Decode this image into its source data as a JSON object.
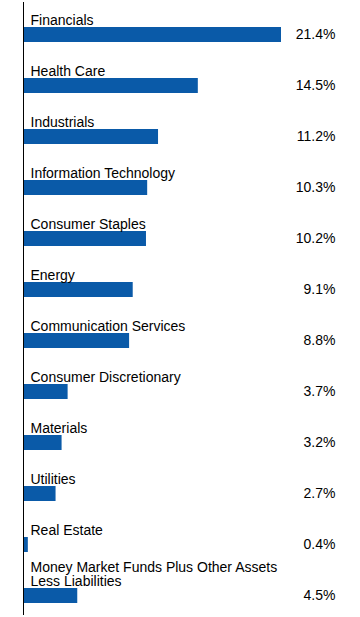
{
  "chart_data": {
    "type": "bar",
    "orientation": "horizontal",
    "categories": [
      "Financials",
      "Health Care",
      "Industrials",
      "Information Technology",
      "Consumer Staples",
      "Energy",
      "Communication Services",
      "Consumer Discretionary",
      "Materials",
      "Utilities",
      "Real Estate",
      "Money Market Funds Plus Other Assets Less Liabilities"
    ],
    "values": [
      21.4,
      14.5,
      11.2,
      10.3,
      10.2,
      9.1,
      8.8,
      3.7,
      3.2,
      2.7,
      0.4,
      4.5
    ],
    "value_labels": [
      "21.4%",
      "14.5%",
      "11.2%",
      "10.3%",
      "10.2%",
      "9.1%",
      "8.8%",
      "3.7%",
      "3.2%",
      "2.7%",
      "0.4%",
      "4.5%"
    ],
    "color": "#0a5aa8",
    "data_labels": true,
    "tick_labels": false,
    "grid": false
  }
}
